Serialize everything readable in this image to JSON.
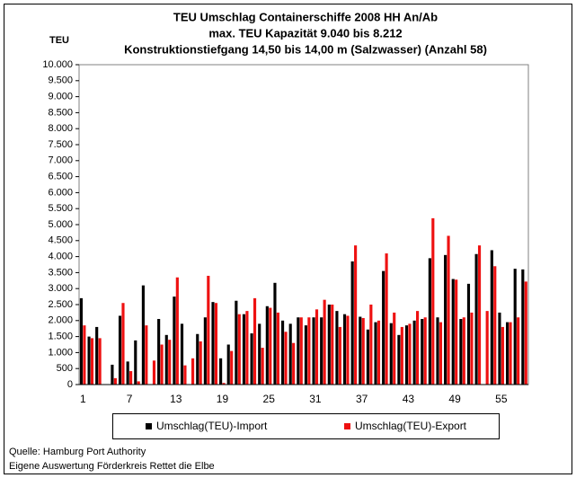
{
  "chart_data": {
    "type": "bar",
    "title": [
      "TEU Umschlag Containerschiffe 2008 HH An/Ab",
      "max. TEU Kapazität 9.040 bis 8.212",
      "Konstruktionstiefgang 14,50 bis 14,00 m (Salzwasser)  (Anzahl 58)"
    ],
    "y_label": "TEU",
    "categories": [
      1,
      null,
      null,
      null,
      null,
      null,
      7,
      null,
      null,
      null,
      null,
      null,
      13,
      null,
      null,
      null,
      null,
      null,
      19,
      null,
      null,
      null,
      null,
      null,
      25,
      null,
      null,
      null,
      null,
      null,
      31,
      null,
      null,
      null,
      null,
      null,
      37,
      null,
      null,
      null,
      null,
      null,
      43,
      null,
      null,
      null,
      null,
      null,
      49,
      null,
      null,
      null,
      null,
      null,
      55,
      null,
      null,
      null
    ],
    "series": [
      {
        "name": "Umschlag(TEU)-Import",
        "color": "#000000",
        "values": [
          2700,
          1500,
          1800,
          0,
          620,
          2150,
          720,
          1380,
          3100,
          0,
          2050,
          1550,
          2750,
          1900,
          0,
          1580,
          2100,
          2580,
          820,
          1250,
          2620,
          2200,
          1600,
          1900,
          2450,
          3180,
          2000,
          1900,
          2100,
          1850,
          2100,
          2100,
          2500,
          2300,
          2200,
          3850,
          2120,
          1720,
          1950,
          3550,
          1920,
          1550,
          1850,
          2000,
          2050,
          3950,
          2100,
          4050,
          3300,
          2050,
          3150,
          4080,
          0,
          4200,
          2250,
          1950,
          3620,
          3600
        ]
      },
      {
        "name": "Umschlag(TEU)-Export",
        "color": "#ee1111",
        "values": [
          1850,
          1450,
          1450,
          0,
          200,
          2550,
          420,
          100,
          1850,
          750,
          1250,
          1400,
          3350,
          600,
          820,
          1350,
          3400,
          2550,
          50,
          1050,
          2200,
          2300,
          2700,
          1150,
          2400,
          2250,
          1650,
          1300,
          2100,
          2100,
          2350,
          2650,
          2500,
          1800,
          2150,
          4350,
          2080,
          2500,
          2000,
          4100,
          2250,
          1800,
          1900,
          2300,
          2100,
          5200,
          1950,
          4650,
          3280,
          2100,
          2250,
          4350,
          2300,
          3700,
          1800,
          1950,
          2100,
          3220
        ]
      }
    ],
    "ylim": [
      0,
      10000
    ],
    "yticks": [
      0,
      500,
      {
        "value": 1000,
        "label": "1.000"
      },
      {
        "value": 1500,
        "label": "1.500"
      },
      {
        "value": 2000,
        "label": "2.000"
      },
      {
        "value": 2500,
        "label": "2.500"
      },
      {
        "value": 3000,
        "label": "3.000"
      },
      {
        "value": 3500,
        "label": "3.500"
      },
      {
        "value": 4000,
        "label": "4.000"
      },
      {
        "value": 4500,
        "label": "4.500"
      },
      {
        "value": 5000,
        "label": "5.000"
      },
      {
        "value": 5500,
        "label": "5.500"
      },
      {
        "value": 6000,
        "label": "6.000"
      },
      {
        "value": 6500,
        "label": "6.500"
      },
      {
        "value": 7000,
        "label": "7.000"
      },
      {
        "value": 7500,
        "label": "7.500"
      },
      {
        "value": 8000,
        "label": "8.000"
      },
      {
        "value": 8500,
        "label": "8.500"
      },
      {
        "value": 9000,
        "label": "9.000"
      },
      {
        "value": 9500,
        "label": "9.500"
      },
      {
        "value": 10000,
        "label": "10.000"
      }
    ],
    "grid": false,
    "legend": "bottom",
    "notes": [
      "Quelle: Hamburg Port Authority",
      "Eigene Auswertung Förderkreis Rettet die Elbe"
    ]
  }
}
